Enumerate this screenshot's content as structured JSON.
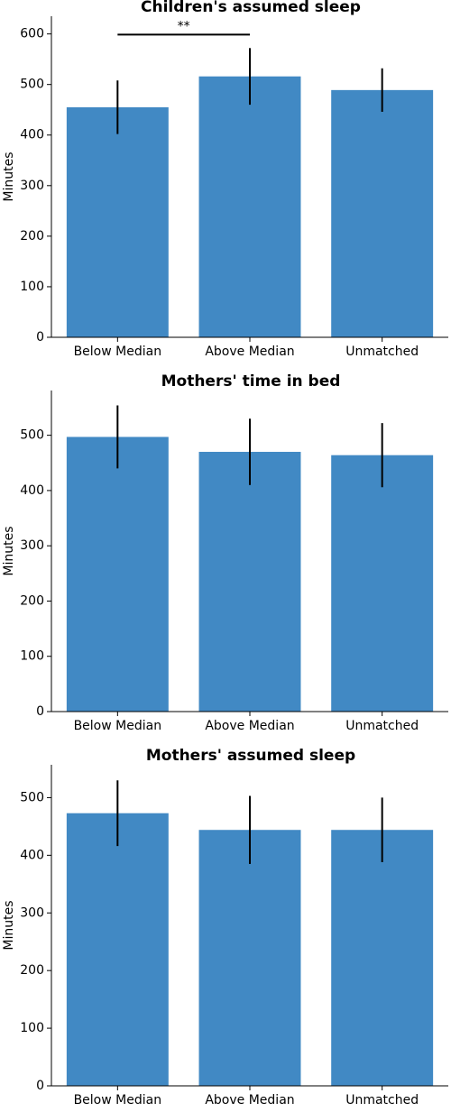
{
  "chart_data": [
    {
      "type": "bar",
      "title": "Children's assumed sleep",
      "ylabel": "Minutes",
      "categories": [
        "Below Median",
        "Above Median",
        "Unmatched"
      ],
      "values": [
        455,
        516,
        489
      ],
      "errors": [
        53,
        56,
        43
      ],
      "color": "#4189c4",
      "ylim": [
        0,
        635
      ],
      "yticks": [
        0,
        100,
        200,
        300,
        400,
        500,
        600
      ],
      "annotations": [
        {
          "text": "**",
          "from": 0,
          "to": 1
        }
      ]
    },
    {
      "type": "bar",
      "title": "Mothers' time in bed",
      "ylabel": "Minutes",
      "categories": [
        "Below Median",
        "Above Median",
        "Unmatched"
      ],
      "values": [
        497,
        470,
        464
      ],
      "errors": [
        57,
        60,
        58
      ],
      "color": "#4189c4",
      "ylim": [
        0,
        581
      ],
      "yticks": [
        0,
        100,
        200,
        300,
        400,
        500
      ]
    },
    {
      "type": "bar",
      "title": "Mothers' assumed sleep",
      "ylabel": "Minutes",
      "categories": [
        "Below Median",
        "Above Median",
        "Unmatched"
      ],
      "values": [
        473,
        444,
        444
      ],
      "errors": [
        57,
        59,
        56
      ],
      "color": "#4189c4",
      "ylim": [
        0,
        557
      ],
      "yticks": [
        0,
        100,
        200,
        300,
        400,
        500
      ]
    }
  ]
}
